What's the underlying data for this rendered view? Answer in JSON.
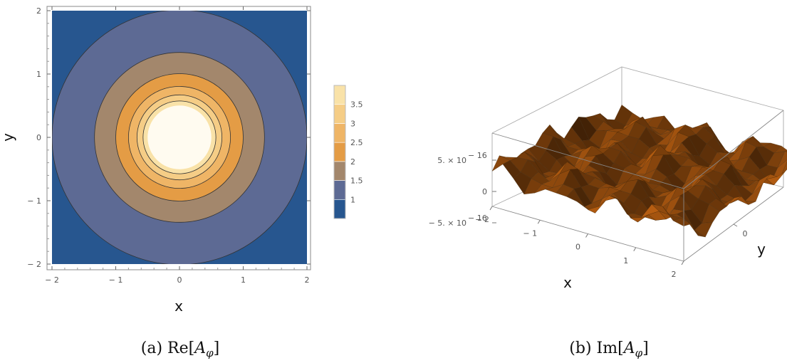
{
  "chart_data": [
    {
      "type": "contour",
      "xlabel": "x",
      "ylabel": "y",
      "xlim": [
        -2,
        2
      ],
      "ylim": [
        -2,
        2
      ],
      "x_ticks": [
        "− 2",
        "− 1",
        "0",
        "1",
        "2"
      ],
      "y_ticks": [
        "− 2",
        "− 1",
        "0",
        "1",
        "2"
      ],
      "contour_levels": [
        1,
        1.5,
        2,
        2.5,
        3,
        3.5
      ],
      "legend_labels": [
        "1",
        "1.5",
        "2",
        "2.5",
        "3",
        "3.5"
      ],
      "legend_placement": "right",
      "region_colors": [
        "#27568f",
        "#5d6a94",
        "#a3876c",
        "#e49c45",
        "#efb566",
        "#f5cd86",
        "#f9e2a8",
        "#fffbf0"
      ],
      "caption": {
        "prefix": "(a) ",
        "text": "Re[",
        "symbol": "A",
        "sub": "φ",
        "suffix": "]"
      }
    },
    {
      "type": "surface3d",
      "xlabel": "x",
      "ylabel": "y",
      "x_ticks": [
        "− 2",
        "− 1",
        "0",
        "1",
        "2"
      ],
      "y_ticks": [
        "0"
      ],
      "z_ticks": [
        {
          "mant": "5. × 10",
          "exp": "− 16"
        },
        {
          "mant": "0",
          "exp": ""
        },
        {
          "mant": "− 5. × 10",
          "exp": "− 16"
        }
      ],
      "zlim": [
        -5e-16,
        5e-16
      ],
      "surface_color": "#a0520f",
      "caption": {
        "prefix": "(b) ",
        "text": "Im[",
        "symbol": "A",
        "sub": "φ",
        "suffix": "]"
      }
    }
  ]
}
